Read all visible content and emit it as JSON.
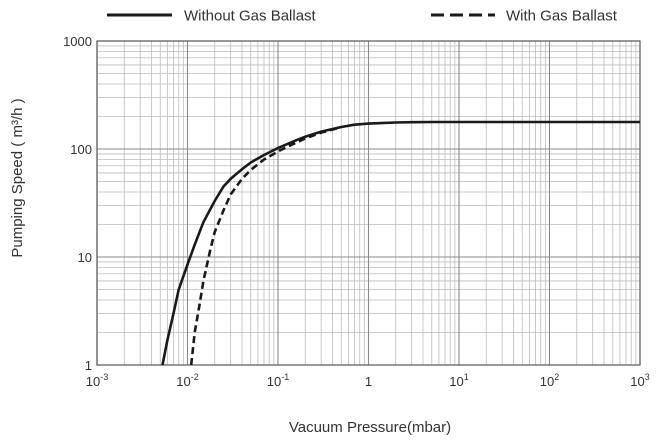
{
  "chart_data": {
    "type": "line",
    "title": "",
    "xlabel": "Vacuum Pressure(mbar)",
    "ylabel": "Pumping Speed ( m³/h )",
    "xscale": "log",
    "yscale": "log",
    "xlim": [
      0.001,
      1000
    ],
    "ylim": [
      1,
      1000
    ],
    "grid": true,
    "legend_position": "top",
    "x_ticks": [
      {
        "value": 0.001,
        "base": "10",
        "exp": "-3"
      },
      {
        "value": 0.01,
        "base": "10",
        "exp": "-2"
      },
      {
        "value": 0.1,
        "base": "10",
        "exp": "-1"
      },
      {
        "value": 1,
        "base": "1",
        "exp": ""
      },
      {
        "value": 10,
        "base": "10",
        "exp": "1"
      },
      {
        "value": 100,
        "base": "10",
        "exp": "2"
      },
      {
        "value": 1000,
        "base": "10",
        "exp": "3"
      }
    ],
    "y_ticks": [
      {
        "value": 1,
        "label": "1"
      },
      {
        "value": 10,
        "label": "10"
      },
      {
        "value": 100,
        "label": "100"
      },
      {
        "value": 1000,
        "label": "1000"
      }
    ],
    "series": [
      {
        "name": "Without Gas Ballast",
        "style": "solid",
        "color": "#1a1a1a",
        "points": [
          [
            0.0053,
            1
          ],
          [
            0.006,
            1.7
          ],
          [
            0.007,
            3
          ],
          [
            0.008,
            5
          ],
          [
            0.01,
            8.5
          ],
          [
            0.012,
            13
          ],
          [
            0.015,
            21
          ],
          [
            0.02,
            33
          ],
          [
            0.025,
            45
          ],
          [
            0.03,
            53
          ],
          [
            0.04,
            65
          ],
          [
            0.05,
            75
          ],
          [
            0.07,
            88
          ],
          [
            0.1,
            102
          ],
          [
            0.15,
            118
          ],
          [
            0.2,
            130
          ],
          [
            0.3,
            145
          ],
          [
            0.5,
            160
          ],
          [
            0.7,
            168
          ],
          [
            1,
            172
          ],
          [
            2,
            176
          ],
          [
            3,
            177
          ],
          [
            5,
            178
          ],
          [
            10,
            178
          ],
          [
            100,
            178
          ],
          [
            1000,
            178
          ]
        ]
      },
      {
        "name": "With Gas Ballast",
        "style": "dashed",
        "color": "#1a1a1a",
        "points": [
          [
            0.011,
            1
          ],
          [
            0.012,
            2
          ],
          [
            0.0135,
            3.5
          ],
          [
            0.015,
            6
          ],
          [
            0.018,
            12
          ],
          [
            0.02,
            17
          ],
          [
            0.025,
            27
          ],
          [
            0.03,
            38
          ],
          [
            0.04,
            53
          ],
          [
            0.05,
            64
          ],
          [
            0.07,
            80
          ],
          [
            0.1,
            95
          ],
          [
            0.15,
            112
          ],
          [
            0.2,
            125
          ],
          [
            0.3,
            142
          ],
          [
            0.45,
            155
          ]
        ]
      }
    ]
  }
}
